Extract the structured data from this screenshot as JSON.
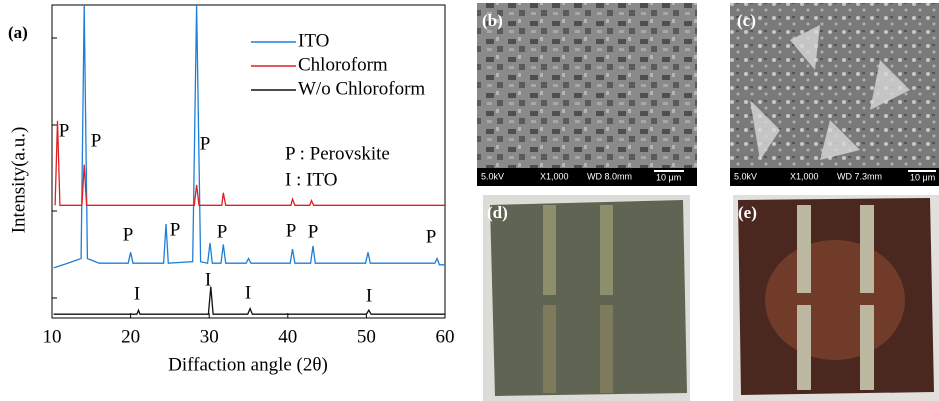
{
  "chart_data": {
    "type": "line",
    "label": "(a)",
    "x_label": "Diffaction angle (2θ)",
    "y_label": "Intensity(a.u.)",
    "xlim": [
      10,
      60
    ],
    "xticks": [
      10,
      20,
      30,
      40,
      50,
      60
    ],
    "ylim": [
      0,
      100
    ],
    "series": [
      {
        "name": "ITO",
        "color": "#1f7fd6",
        "x": [
          10.2,
          12,
          13.7,
          14.1,
          14.5,
          16,
          19.7,
          20,
          20.3,
          24.2,
          24.5,
          24.8,
          27.9,
          28.4,
          28.9,
          29.8,
          30.1,
          30.4,
          31.5,
          31.8,
          32.1,
          34.7,
          35,
          35.3,
          40.3,
          40.6,
          40.9,
          42.9,
          43.2,
          43.5,
          49.9,
          50.2,
          50.5,
          58.7,
          59,
          59.3,
          60
        ],
        "values": [
          16,
          17.5,
          19,
          100,
          19,
          17.5,
          17.5,
          21,
          17.5,
          17.5,
          30,
          17.5,
          18,
          100,
          18,
          17.5,
          24,
          17.5,
          17.5,
          23.5,
          17.5,
          17.5,
          19,
          17.5,
          17.5,
          22,
          17.5,
          17.5,
          23,
          17.5,
          17.5,
          21,
          17.5,
          17.5,
          19,
          17,
          17
        ]
      },
      {
        "name": "Chloroform",
        "color": "#e02020",
        "x": [
          10.4,
          10.7,
          11,
          13.8,
          14.1,
          14.4,
          28.1,
          28.4,
          28.7,
          31.6,
          31.8,
          32.1,
          40.4,
          40.6,
          40.9,
          42.8,
          43,
          43.3,
          60
        ],
        "values": [
          36,
          63,
          36,
          36,
          49,
          36,
          36,
          42.5,
          36,
          36,
          40,
          36,
          36,
          38,
          36,
          36,
          37.5,
          36,
          36
        ]
      },
      {
        "name": "W/o Chloroform",
        "color": "#111111",
        "x": [
          10.2,
          20.8,
          21,
          21.2,
          29.9,
          30.2,
          30.5,
          34.9,
          35.2,
          35.5,
          50,
          50.3,
          50.6,
          60
        ],
        "values": [
          1.2,
          1.2,
          2.5,
          1.2,
          1.2,
          10,
          1.2,
          1.2,
          3,
          1.2,
          1.2,
          2.5,
          1.2,
          1.2
        ]
      }
    ],
    "annotations": [
      "P",
      "P",
      "P",
      "P",
      "P",
      "P",
      "P",
      "P",
      "P",
      "I",
      "I",
      "I",
      "I"
    ],
    "notes": [
      "P : Perovskite",
      "I : ITO"
    ]
  },
  "panels": [
    {
      "label": "(b)",
      "footer": [
        "5.0kV",
        "X1,000",
        "WD 8.0mm",
        "10 μm"
      ]
    },
    {
      "label": "(c)",
      "footer": [
        "5.0kV",
        "X1,000",
        "WD 7.3mm",
        "10 μm"
      ]
    },
    {
      "label": "(d)"
    },
    {
      "label": "(e)"
    }
  ]
}
